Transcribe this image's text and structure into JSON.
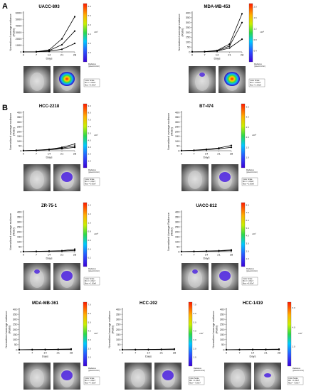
{
  "panels": [
    "A",
    "B"
  ],
  "common": {
    "ylabel": "Normalized average radiance\n(Ratio)",
    "ylabel_alt": "Normalized Average Radiance\n(Ratio)",
    "xlabel": "Days",
    "radiance_label": "Radiance\n(p/sec/cm²/sr)",
    "color_scale_label": "Color Scale"
  },
  "colors": {
    "line": "#000000",
    "axis": "#333333",
    "mouse_bg": "#8a8a8a"
  },
  "chart_data": [
    {
      "type": "line",
      "title": "UACC-893",
      "xlabel": "Days",
      "ylabel": "Normalized average radiance\n(Ratio)",
      "x": [
        0,
        7,
        14,
        21,
        28
      ],
      "xlim": [
        0,
        28
      ],
      "ylim": [
        0,
        6000
      ],
      "yticks": [
        0,
        1000,
        2000,
        3000,
        4000,
        5000,
        6000
      ],
      "series": [
        {
          "values": [
            1,
            30,
            300,
            2000,
            5400
          ]
        },
        {
          "values": [
            1,
            20,
            200,
            1100,
            3200
          ]
        },
        {
          "values": [
            1,
            10,
            100,
            400,
            1300
          ]
        }
      ],
      "colorbar": {
        "ticks": [
          "1.0",
          "2.0",
          "3.0",
          "4.0",
          "5.0",
          "6.0"
        ],
        "exponent": "x10⁷"
      },
      "scale": {
        "min": "Min = 1.00e6",
        "max": "Max = 6.00e7"
      }
    },
    {
      "type": "line",
      "title": "MDA-MB-453",
      "xlabel": "Days",
      "ylabel": "Normalized average radiance\n(Ratio)",
      "x": [
        0,
        7,
        14,
        21,
        28
      ],
      "xlim": [
        0,
        28
      ],
      "ylim": [
        0,
        400
      ],
      "yticks": [
        0,
        50,
        100,
        150,
        200,
        250,
        300,
        350,
        400
      ],
      "series": [
        {
          "values": [
            1,
            3,
            15,
            80,
            390
          ]
        },
        {
          "values": [
            1,
            2,
            10,
            60,
            300
          ]
        },
        {
          "values": [
            1,
            2,
            8,
            40,
            130
          ]
        }
      ],
      "colorbar": {
        "ticks": [
          "0.4",
          "0.8",
          "1.2",
          "1.6",
          "2.0"
        ],
        "exponent": "x10⁸"
      },
      "scale": {
        "min": "Min = 4.00e6",
        "max": "Max = 2.00e8"
      }
    },
    {
      "type": "line",
      "title": "HCC-2218",
      "xlabel": "Days",
      "ylabel": "Normalized average radiance\n(Ratio)",
      "x": [
        0,
        7,
        14,
        21,
        28
      ],
      "xlim": [
        0,
        28
      ],
      "ylim": [
        0,
        400
      ],
      "yticks": [
        0,
        50,
        100,
        150,
        200,
        250,
        300,
        350,
        400
      ],
      "series": [
        {
          "values": [
            1,
            5,
            15,
            35,
            70
          ]
        },
        {
          "values": [
            1,
            4,
            12,
            28,
            50
          ]
        },
        {
          "values": [
            1,
            3,
            10,
            20,
            35
          ]
        }
      ],
      "colorbar": {
        "ticks": [
          "1.0",
          "2.0",
          "3.0",
          "4.0",
          "5.0",
          "6.0",
          "7.0",
          "8.0",
          "9.0"
        ],
        "exponent": "x10⁷"
      },
      "scale": {
        "min": "Min = 1.00e7",
        "max": "Max = 9.00e7"
      }
    },
    {
      "type": "line",
      "title": "BT-474",
      "xlabel": "Days",
      "ylabel": "Normalized average radiance\n(Ratio)",
      "x": [
        0,
        7,
        14,
        21,
        28
      ],
      "xlim": [
        0,
        28
      ],
      "ylim": [
        0,
        400
      ],
      "yticks": [
        0,
        50,
        100,
        150,
        200,
        250,
        300,
        350,
        400
      ],
      "series": [
        {
          "values": [
            1,
            5,
            15,
            28,
            55
          ]
        },
        {
          "values": [
            1,
            4,
            10,
            20,
            35
          ]
        }
      ],
      "colorbar": {
        "ticks": [
          "1.0",
          "1.5",
          "2.0",
          "2.5",
          "3.0",
          "3.5"
        ],
        "exponent": "x10⁸"
      },
      "scale": {
        "min": "Min = 1.00e8",
        "max": "Max = 5.00e8"
      }
    },
    {
      "type": "line",
      "title": "ZR-75-1",
      "xlabel": "Days",
      "ylabel": "Normalized average radiance\n(Ratio)",
      "x": [
        0,
        7,
        14,
        21,
        28
      ],
      "xlim": [
        0,
        28
      ],
      "ylim": [
        0,
        400
      ],
      "yticks": [
        0,
        50,
        100,
        150,
        200,
        250,
        300,
        350,
        400
      ],
      "series": [
        {
          "values": [
            1,
            3,
            6,
            10,
            25
          ]
        },
        {
          "values": [
            1,
            2,
            4,
            6,
            12
          ]
        }
      ],
      "colorbar": {
        "ticks": [
          "0.2",
          "0.4",
          "0.6",
          "0.8",
          "1.0",
          "1.2",
          "1.4"
        ],
        "exponent": "x10⁸"
      },
      "scale": {
        "min": "Min = 1.00e7",
        "max": "Max = 1.00e8"
      }
    },
    {
      "type": "line",
      "title": "UACC-812",
      "xlabel": "Days",
      "ylabel": "Normalized Average Radiance\n(Ratio)",
      "x": [
        0,
        7,
        14,
        21,
        28
      ],
      "xlim": [
        0,
        28
      ],
      "ylim": [
        0,
        400
      ],
      "yticks": [
        0,
        50,
        100,
        150,
        200,
        250,
        300,
        350,
        400
      ],
      "series": [
        {
          "values": [
            1,
            3,
            6,
            10,
            18
          ]
        },
        {
          "values": [
            1,
            2,
            4,
            6,
            10
          ]
        }
      ],
      "colorbar": {
        "ticks": [
          "1.0",
          "2.0",
          "3.0",
          "4.0",
          "5.0",
          "6.0",
          "7.0",
          "8.0"
        ],
        "exponent": "x10⁷"
      },
      "scale": {
        "min": "Min = 1.00e7",
        "max": "Max = 8.00e7"
      }
    },
    {
      "type": "line",
      "title": "MDA-MB-361",
      "xlabel": "Days",
      "ylabel": "Normalized average radiance\n(Ratio)",
      "x": [
        0,
        7,
        14,
        21,
        28
      ],
      "xlim": [
        0,
        28
      ],
      "ylim": [
        0,
        400
      ],
      "yticks": [
        0,
        50,
        100,
        150,
        200,
        250,
        300,
        350,
        400
      ],
      "series": [
        {
          "values": [
            1,
            2,
            3,
            5,
            8
          ]
        },
        {
          "values": [
            1,
            1,
            2,
            3,
            4
          ]
        }
      ],
      "colorbar": {
        "ticks": [
          "1.0",
          "2.0",
          "3.0",
          "4.0",
          "5.0",
          "6.0",
          "7.0"
        ],
        "exponent": "x10⁷"
      },
      "scale": {
        "min": "Min = 1.00e7",
        "max": "Max = 7.50e7"
      }
    },
    {
      "type": "line",
      "title": "HCC-202",
      "xlabel": "Days",
      "ylabel": "Normalized average radiance\n(Ratio)",
      "x": [
        0,
        7,
        14,
        21,
        28
      ],
      "xlim": [
        0,
        28
      ],
      "ylim": [
        0,
        400
      ],
      "yticks": [
        0,
        50,
        100,
        150,
        200,
        250,
        300,
        350,
        400
      ],
      "series": [
        {
          "values": [
            1,
            2,
            3,
            5,
            8
          ]
        },
        {
          "values": [
            1,
            1,
            2,
            3,
            5
          ]
        }
      ],
      "colorbar": {
        "ticks": [
          "1.0",
          "2.0",
          "3.0",
          "4.0",
          "5.0",
          "6.0",
          "7.0"
        ],
        "exponent": "x10⁷"
      },
      "scale": {
        "min": "Min = 1.00e7",
        "max": "Max = 7.50e7"
      }
    },
    {
      "type": "line",
      "title": "HCC-1419",
      "xlabel": "Days",
      "ylabel": "Normalized average radiance\n(Ratio)",
      "x": [
        0,
        7,
        14,
        21,
        28
      ],
      "xlim": [
        0,
        28
      ],
      "ylim": [
        0,
        400
      ],
      "yticks": [
        0,
        50,
        100,
        150,
        200,
        250,
        300,
        350,
        400
      ],
      "series": [
        {
          "values": [
            1,
            2,
            3,
            4,
            6
          ]
        },
        {
          "values": [
            1,
            1,
            2,
            2,
            3
          ]
        }
      ],
      "colorbar": {
        "ticks": [
          "2.0",
          "4.0",
          "6.0"
        ],
        "exponent": "x10⁷"
      },
      "scale": {
        "min": "Min = 1.00e7",
        "max": "Max = 7.50e7"
      }
    }
  ]
}
